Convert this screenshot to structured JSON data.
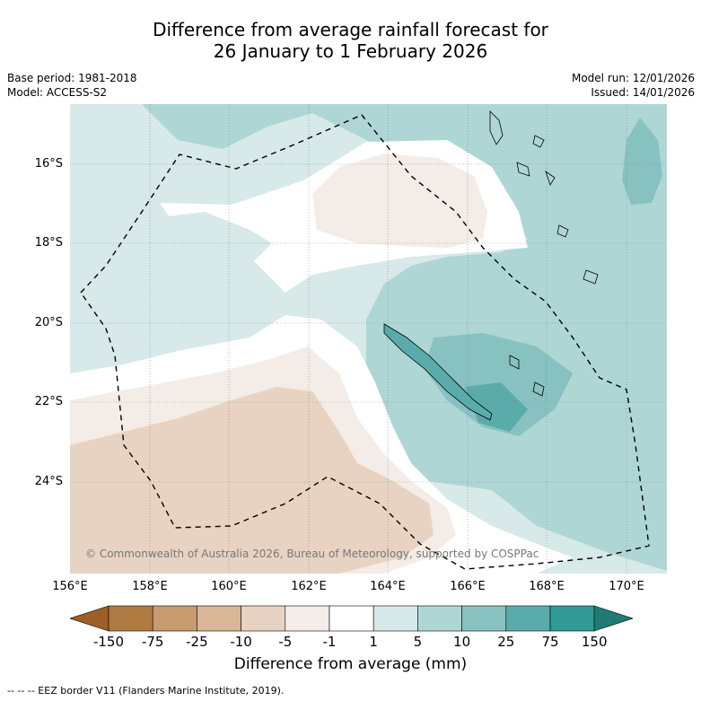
{
  "title": {
    "line1": "Difference from average rainfall forecast for",
    "line2": "26 January to 1 February 2026"
  },
  "meta": {
    "base_period": "Base period: 1981-2018",
    "model": "Model: ACCESS-S2",
    "model_run": "Model run: 12/01/2026",
    "issued": "Issued: 14/01/2026"
  },
  "axes": {
    "latitude_labels": [
      "16°S",
      "18°S",
      "20°S",
      "22°S",
      "24°S"
    ],
    "longitude_labels": [
      "156°E",
      "158°E",
      "160°E",
      "162°E",
      "164°E",
      "166°E",
      "168°E",
      "170°E"
    ]
  },
  "map": {
    "copyright": "© Commonwealth of Australia 2026, Bureau of Meteorology, supported by COSPPac"
  },
  "colorbar": {
    "title": "Difference from average (mm)",
    "tick_labels": [
      "-150",
      "-75",
      "-25",
      "-10",
      "-5",
      "-1",
      "1",
      "5",
      "10",
      "25",
      "75",
      "150"
    ],
    "colors": [
      "#9c5f28",
      "#b07a43",
      "#c79b70",
      "#d8b697",
      "#e8d3c2",
      "#f4ece6",
      "#ffffff",
      "#d7e9e8",
      "#aed6d5",
      "#87c2c1",
      "#5aacab",
      "#319a96",
      "#1e7b76"
    ]
  },
  "footer": {
    "eez_note": "--  --  -- EEZ border V11 (Flanders Marine Institute, 2019)."
  }
}
